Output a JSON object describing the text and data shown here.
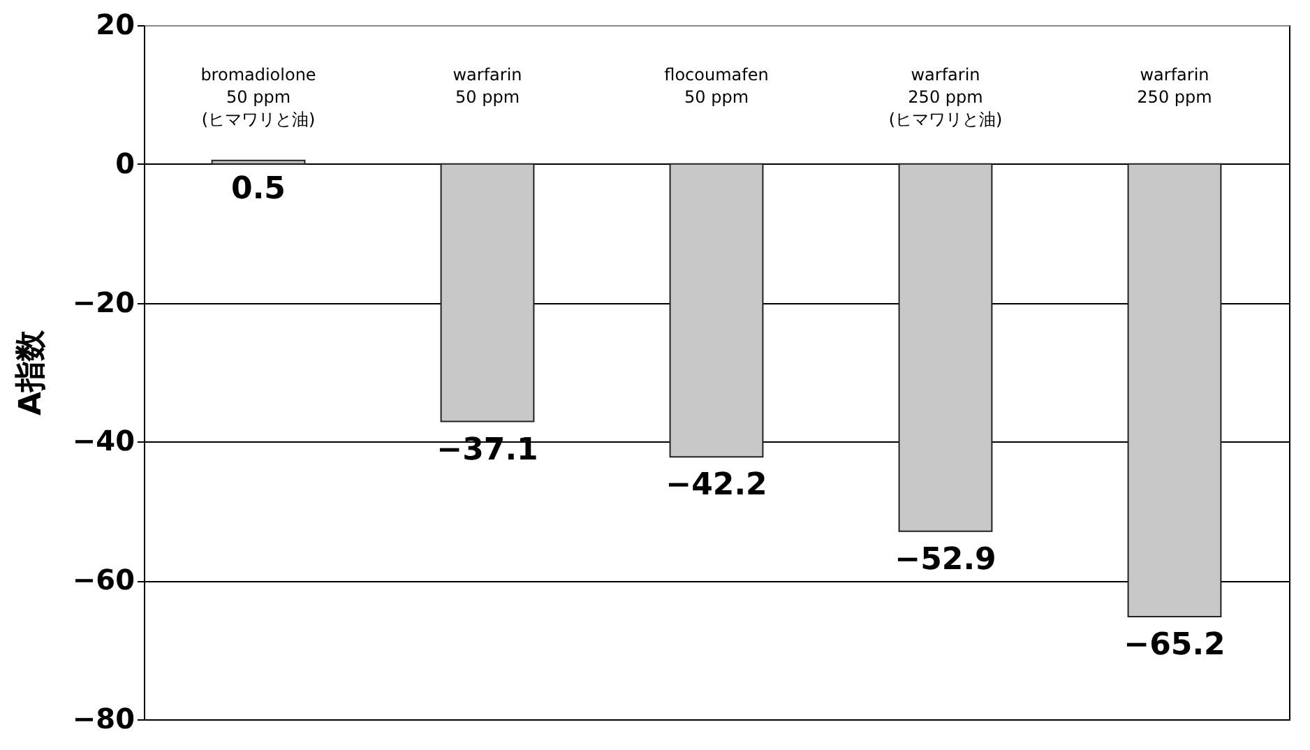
{
  "chart_data": {
    "type": "bar",
    "ylabel": "A指数",
    "categories": [
      "bromadiolone\n50 ppm\n(ヒマワリと油)",
      "warfarin\n50 ppm",
      "flocoumafen\n50 ppm",
      "warfarin\n250 ppm\n(ヒマワリと油)",
      "warfarin\n250 ppm"
    ],
    "values": [
      0.5,
      -37.1,
      -42.2,
      -52.9,
      -65.2
    ],
    "color": "#c8c8c8",
    "ylim": [
      -80,
      20
    ],
    "yticks": [
      -80,
      -60,
      -40,
      -20,
      0,
      20
    ],
    "grid": "y",
    "data_labels": true
  }
}
